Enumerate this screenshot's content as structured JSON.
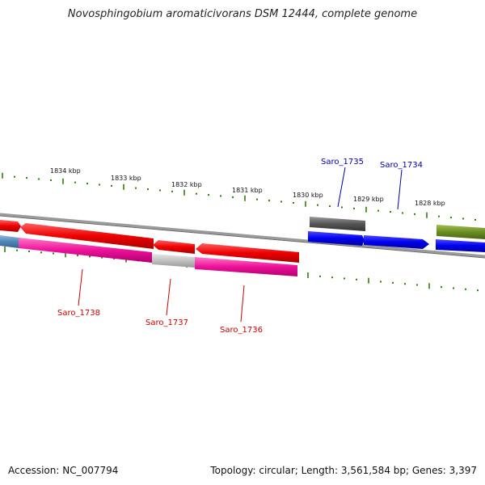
{
  "title": "Novosphingobium aromaticivorans DSM 12444, complete genome",
  "footer": {
    "accession": "Accession: NC_007794",
    "topology": "Topology: circular; Length: 3,561,584 bp; Genes: 3,397"
  },
  "kbp_labels": [
    "1834 kbp",
    "1833 kbp",
    "1832 kbp",
    "1831 kbp",
    "1830 kbp",
    "1829 kbp",
    "1828 kbp"
  ],
  "genes_top": [
    {
      "name": "Saro_1735",
      "color": "#0000aa"
    },
    {
      "name": "Saro_1734",
      "color": "#0000aa"
    }
  ],
  "genes_bottom": [
    {
      "name": "Saro_1738",
      "color": "#cc0000"
    },
    {
      "name": "Saro_1737",
      "color": "#cc0000"
    },
    {
      "name": "Saro_1736",
      "color": "#cc0000"
    }
  ],
  "colors": {
    "tick": "#2e7d0e",
    "red": "#ee0000",
    "pink": "#ee1199",
    "blue": "#0000ee",
    "gray": "#555555",
    "light_gray": "#c0c0c0",
    "olive": "#6b8e23",
    "steel": "#4f86b8"
  }
}
